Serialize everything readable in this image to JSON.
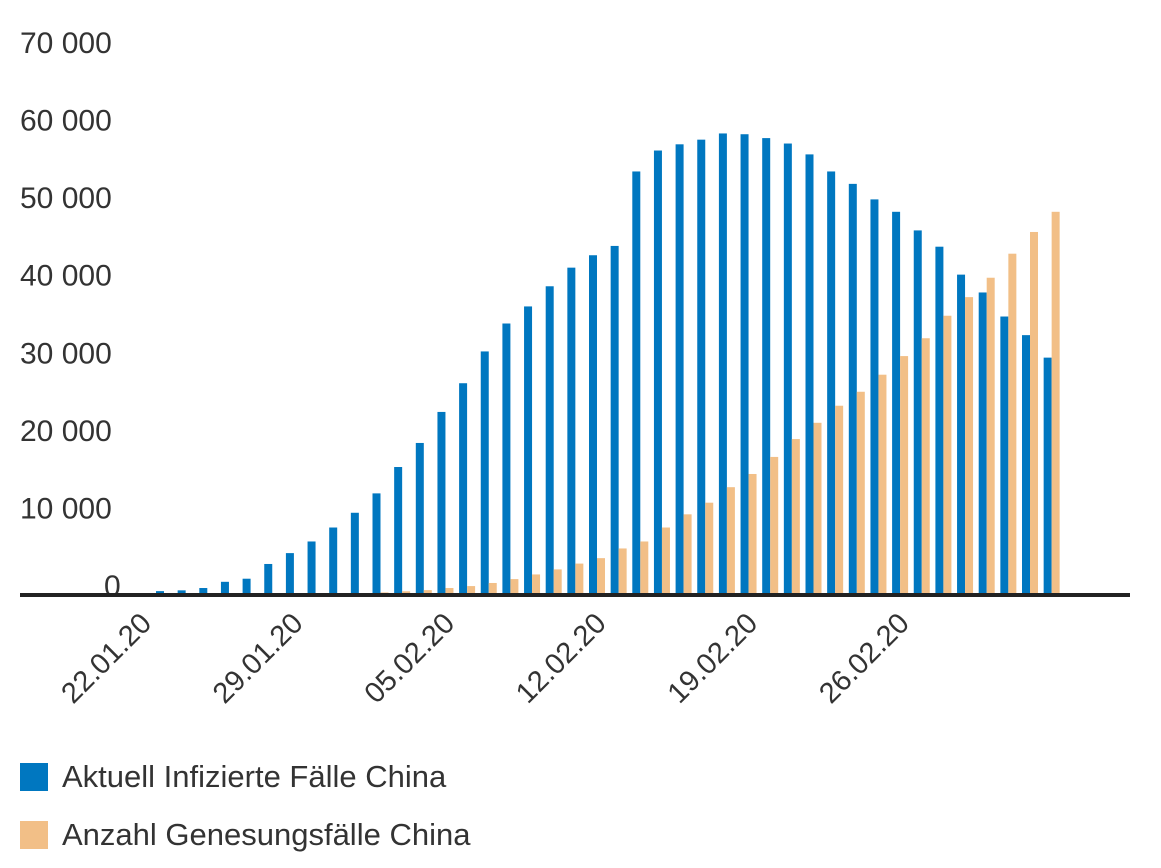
{
  "chart_data": {
    "type": "bar",
    "ylim": [
      0,
      70000
    ],
    "yticks": [
      0,
      10000,
      20000,
      30000,
      40000,
      50000,
      60000,
      70000
    ],
    "ytick_labels": [
      "0",
      "10 000",
      "20 000",
      "30 000",
      "40 000",
      "50 000",
      "60 000",
      "70 000"
    ],
    "x_tick_labels": [
      "22.01.20",
      "29.01.20",
      "05.02.20",
      "12.02.20",
      "19.02.20",
      "26.02.20"
    ],
    "categories": [
      "22.01.20",
      "23.01.20",
      "24.01.20",
      "25.01.20",
      "26.01.20",
      "27.01.20",
      "28.01.20",
      "29.01.20",
      "30.01.20",
      "31.01.20",
      "01.02.20",
      "02.02.20",
      "03.02.20",
      "04.02.20",
      "05.02.20",
      "06.02.20",
      "07.02.20",
      "08.02.20",
      "09.02.20",
      "10.02.20",
      "11.02.20",
      "12.02.20",
      "13.02.20",
      "14.02.20",
      "15.02.20",
      "16.02.20",
      "17.02.20",
      "18.02.20",
      "19.02.20",
      "20.02.20",
      "21.02.20",
      "22.02.20",
      "23.02.20",
      "24.02.20",
      "25.02.20",
      "26.02.20",
      "27.02.20",
      "28.02.20",
      "29.02.20",
      "01.03.20",
      "02.03.20",
      "03.03.20"
    ],
    "grid": false,
    "legend_position": "bottom-left",
    "series": [
      {
        "name": "Aktuell Infizierte Fälle China",
        "color": "#0077c0",
        "values": [
          500,
          600,
          900,
          1700,
          2100,
          4000,
          5400,
          6900,
          8700,
          10600,
          13100,
          16500,
          19600,
          23600,
          27300,
          31400,
          35000,
          37200,
          39800,
          42200,
          43800,
          45000,
          54600,
          57300,
          58100,
          58700,
          59500,
          59400,
          58900,
          58200,
          56800,
          54600,
          53000,
          51000,
          49400,
          47000,
          44900,
          41300,
          39000,
          35900,
          33500,
          30600
        ]
      },
      {
        "name": "Anzahl Genesungsfälle China",
        "color": "#f2bf87",
        "values": [
          30,
          35,
          40,
          50,
          60,
          60,
          100,
          130,
          170,
          240,
          330,
          480,
          630,
          900,
          1150,
          1550,
          2050,
          2650,
          3300,
          4050,
          4750,
          6000,
          6900,
          8700,
          10400,
          11900,
          13900,
          15600,
          17800,
          20100,
          22200,
          24400,
          26200,
          28400,
          30800,
          33100,
          36000,
          38400,
          40900,
          44000,
          46800,
          49400
        ]
      }
    ]
  },
  "legend": {
    "items": [
      {
        "label": "Aktuell Infizierte Fälle China",
        "color": "#0077c0"
      },
      {
        "label": "Anzahl Genesungsfälle China",
        "color": "#f2bf87"
      }
    ]
  }
}
